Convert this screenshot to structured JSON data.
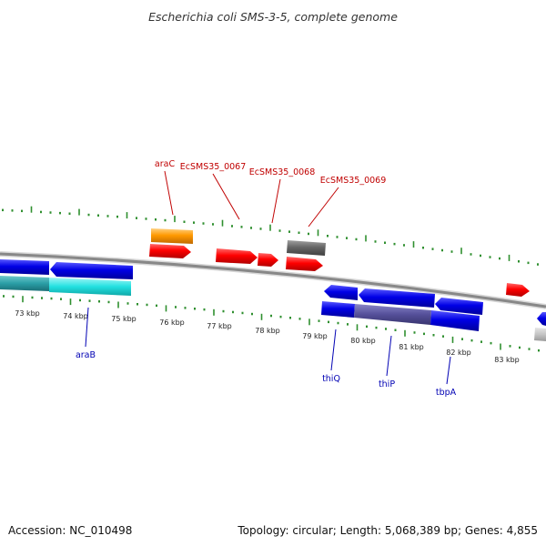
{
  "title": "Escherichia coli SMS-3-5, complete genome",
  "accession_text": "Accession: NC_010498",
  "summary_text": "Topology: circular; Length: 5,068,389 bp; Genes: 4,855",
  "scale_labels": [
    "73 kbp",
    "74 kbp",
    "75 kbp",
    "76 kbp",
    "77 kbp",
    "78 kbp",
    "79 kbp",
    "80 kbp",
    "81 kbp",
    "82 kbp",
    "83 kbp"
  ],
  "top_gene_labels": [
    "araC",
    "EcSMS35_0067",
    "EcSMS35_0068",
    "EcSMS35_0069"
  ],
  "bottom_gene_labels": [
    "araB",
    "thiQ",
    "thiP",
    "tbpA"
  ],
  "colors": {
    "forward_cds": "#ff0000",
    "reverse_cds": "#0000e6",
    "rna": "#ff9900",
    "other": "#666666",
    "reverse_secondary": "#33dddd",
    "tick": "#2f8f2f",
    "backbone": "#888888"
  }
}
